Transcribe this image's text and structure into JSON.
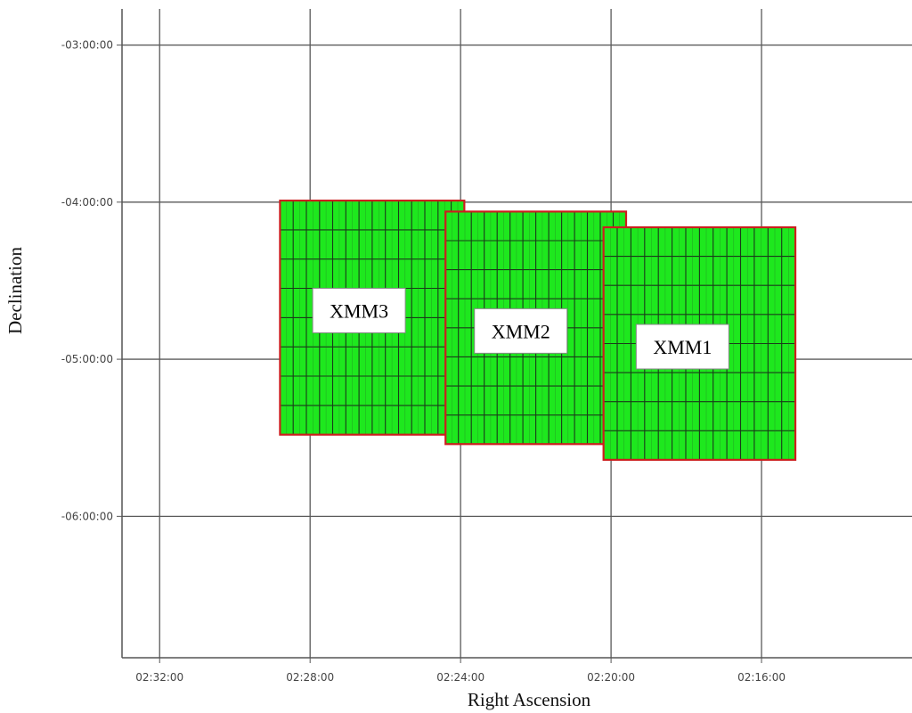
{
  "chart_data": {
    "type": "scatter",
    "title": "",
    "xlabel": "Right Ascension",
    "ylabel": "Declination",
    "x_axis": {
      "unit": "minutes of RA after 02:00:00",
      "reversed": true,
      "range": [
        33.0,
        12.0
      ],
      "ticks": [
        {
          "value": 32,
          "label": "02:32:00"
        },
        {
          "value": 28,
          "label": "02:28:00"
        },
        {
          "value": 24,
          "label": "02:24:00"
        },
        {
          "value": 20,
          "label": "02:20:00"
        },
        {
          "value": 16,
          "label": "02:16:00"
        }
      ]
    },
    "y_axis": {
      "unit": "degrees",
      "range": [
        -6.9,
        -2.77
      ],
      "ticks": [
        {
          "value": -3,
          "label": "-03:00:00"
        },
        {
          "value": -4,
          "label": "-04:00:00"
        },
        {
          "value": -5,
          "label": "-05:00:00"
        },
        {
          "value": -6,
          "label": "-06:00:00"
        }
      ]
    },
    "grid": true,
    "legend": "none",
    "colors": {
      "fill": "#1ee81e",
      "cell_line": "#1a3a1a",
      "outline": "#cc1e1e",
      "grid": "#5a5a5a",
      "label_box": "#ffffff"
    },
    "fields": [
      {
        "name": "XMM3",
        "ra_min": 23.9,
        "ra_max": 28.8,
        "dec_min": -5.48,
        "dec_max": -3.99,
        "cols": 14,
        "rows": 8,
        "label_ra": 26.7,
        "label_dec": -4.69
      },
      {
        "name": "XMM2",
        "ra_min": 19.6,
        "ra_max": 24.4,
        "dec_min": -5.54,
        "dec_max": -4.06,
        "cols": 14,
        "rows": 8,
        "label_ra": 22.4,
        "label_dec": -4.82
      },
      {
        "name": "XMM1",
        "ra_min": 15.1,
        "ra_max": 20.2,
        "dec_min": -5.64,
        "dec_max": -4.16,
        "cols": 14,
        "rows": 8,
        "label_ra": 18.1,
        "label_dec": -4.92
      }
    ]
  }
}
